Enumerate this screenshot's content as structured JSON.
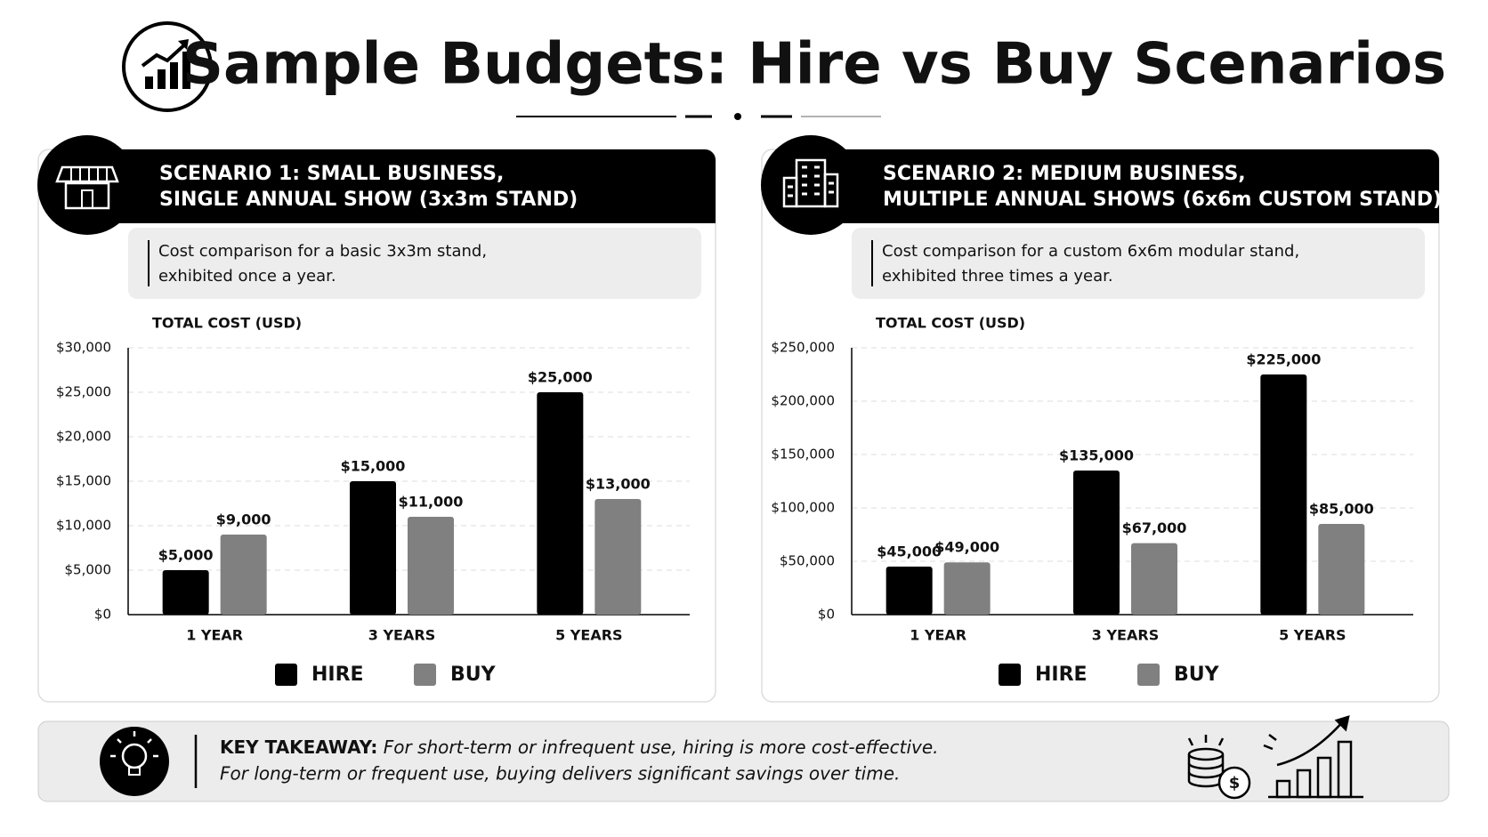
{
  "title": "Sample Budgets: Hire vs Buy Scenarios",
  "chart_data": [
    {
      "type": "bar",
      "title": [
        "SCENARIO 1: SMALL BUSINESS,",
        "SINGLE ANNUAL SHOW (3x3m STAND)"
      ],
      "subtitle": [
        "Cost comparison for a basic 3x3m stand,",
        "exhibited once a year."
      ],
      "ylabel": "TOTAL COST (USD)",
      "categories": [
        "1 YEAR",
        "3 YEARS",
        "5 YEARS"
      ],
      "series": [
        {
          "name": "HIRE",
          "color": "#000000",
          "values": [
            5000,
            15000,
            25000
          ],
          "value_labels": [
            "$5,000",
            "$15,000",
            "$25,000"
          ]
        },
        {
          "name": "BUY",
          "color": "#808080",
          "values": [
            9000,
            11000,
            13000
          ],
          "value_labels": [
            "$9,000",
            "$11,000",
            "$13,000"
          ]
        }
      ],
      "ylim": [
        0,
        30000
      ],
      "yticks": [
        {
          "value": 0,
          "label": "$0"
        },
        {
          "value": 5000,
          "label": "$5,000"
        },
        {
          "value": 10000,
          "label": "$10,000"
        },
        {
          "value": 15000,
          "label": "$15,000"
        },
        {
          "value": 20000,
          "label": "$20,000"
        },
        {
          "value": 25000,
          "label": "$25,000"
        },
        {
          "value": 30000,
          "label": "$30,000"
        }
      ],
      "grid": true
    },
    {
      "type": "bar",
      "title": [
        "SCENARIO 2: MEDIUM BUSINESS,",
        "MULTIPLE ANNUAL SHOWS (6x6m CUSTOM STAND)"
      ],
      "subtitle": [
        "Cost comparison for a custom 6x6m modular stand,",
        "exhibited three times a year."
      ],
      "ylabel": "TOTAL COST (USD)",
      "categories": [
        "1 YEAR",
        "3 YEARS",
        "5 YEARS"
      ],
      "series": [
        {
          "name": "HIRE",
          "color": "#000000",
          "values": [
            45000,
            135000,
            225000
          ],
          "value_labels": [
            "$45,000",
            "$135,000",
            "$225,000"
          ]
        },
        {
          "name": "BUY",
          "color": "#808080",
          "values": [
            49000,
            67000,
            85000
          ],
          "value_labels": [
            "$49,000",
            "$67,000",
            "$85,000"
          ]
        }
      ],
      "ylim": [
        0,
        250000
      ],
      "yticks": [
        {
          "value": 0,
          "label": "$0"
        },
        {
          "value": 50000,
          "label": "$50,000"
        },
        {
          "value": 100000,
          "label": "$100,000"
        },
        {
          "value": 150000,
          "label": "$150,000"
        },
        {
          "value": 200000,
          "label": "$200,000"
        },
        {
          "value": 250000,
          "label": "$250,000"
        }
      ],
      "grid": true
    }
  ],
  "takeaway": {
    "label": "KEY TAKEAWAY:",
    "lines": [
      "For short-term or infrequent use, hiring is more cost-effective.",
      "For long-term or frequent use, buying delivers significant savings over time."
    ]
  }
}
